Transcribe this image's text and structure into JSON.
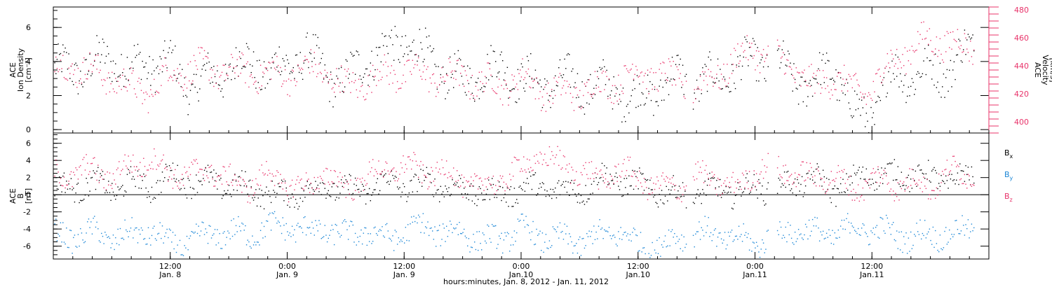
{
  "chart_data": [
    {
      "type": "scatter",
      "name": "ace-plasma-panel",
      "ylabel_lines": [
        "ACE",
        "Ion Density",
        "[cm⁻³]"
      ],
      "y2label_lines": [
        "ACE",
        "Velocity",
        "[km/s]"
      ],
      "ylim": [
        -0.2,
        7.2
      ],
      "y_ticks": [
        0,
        2,
        4,
        6
      ],
      "y2lim": [
        392,
        482
      ],
      "y2_ticks": [
        400,
        420,
        440,
        460,
        480
      ],
      "y2_color": "#e8336a",
      "series": [
        {
          "axis": "left",
          "color": "#000000",
          "x_hours": [
            2,
            4,
            6,
            8,
            10,
            12,
            14,
            16,
            18,
            20,
            22,
            24,
            26,
            28,
            30,
            32,
            34,
            36,
            38,
            40,
            42,
            44,
            46,
            48,
            50,
            52,
            54,
            56,
            58,
            60,
            62,
            64,
            66,
            68,
            70,
            72,
            74,
            76,
            78,
            80,
            82,
            84,
            86,
            88,
            90,
            92,
            94
          ],
          "values": [
            3.5,
            3.8,
            4.2,
            3.6,
            3.9,
            3.8,
            2.5,
            3.0,
            3.6,
            4.0,
            3.4,
            3.8,
            4.5,
            3.2,
            2.8,
            4.2,
            4.6,
            5.2,
            4.4,
            3.4,
            2.8,
            3.5,
            3.6,
            3.0,
            2.6,
            2.9,
            2.7,
            2.6,
            2.2,
            1.8,
            2.5,
            3.1,
            2.6,
            3.0,
            3.6,
            4.0,
            4.0,
            3.0,
            2.6,
            3.8,
            1.0,
            0.9,
            3.3,
            3.2,
            3.4,
            3.6,
            4.8
          ]
        },
        {
          "axis": "right",
          "color": "#e8336a",
          "x_hours": [
            2,
            4,
            6,
            8,
            10,
            12,
            14,
            16,
            18,
            20,
            22,
            24,
            26,
            28,
            30,
            32,
            34,
            36,
            38,
            40,
            42,
            44,
            46,
            48,
            50,
            52,
            54,
            56,
            58,
            60,
            62,
            64,
            66,
            68,
            70,
            72,
            74,
            76,
            78,
            80,
            82,
            84,
            86,
            88,
            90,
            92,
            94
          ],
          "values": [
            440,
            436,
            432,
            424,
            422,
            436,
            438,
            438,
            436,
            436,
            434,
            434,
            438,
            436,
            424,
            430,
            434,
            436,
            434,
            432,
            432,
            428,
            426,
            432,
            424,
            420,
            422,
            426,
            430,
            436,
            434,
            428,
            424,
            434,
            444,
            452,
            446,
            438,
            424,
            434,
            422,
            424,
            444,
            452,
            460,
            456,
            454
          ]
        }
      ]
    },
    {
      "type": "scatter",
      "name": "ace-magnetic-panel",
      "ylabel_lines": [
        "ACE",
        "B",
        "[nT]"
      ],
      "ylim": [
        -7.5,
        7.2
      ],
      "y_ticks": [
        -6,
        -4,
        -2,
        0,
        2,
        4,
        6
      ],
      "zero_line": true,
      "series": [
        {
          "name": "B",
          "sub": "x",
          "color": "#000000",
          "x_hours": [
            2,
            4,
            6,
            8,
            10,
            12,
            14,
            16,
            18,
            20,
            22,
            24,
            26,
            28,
            30,
            32,
            34,
            36,
            38,
            40,
            42,
            44,
            46,
            48,
            50,
            52,
            54,
            56,
            58,
            60,
            62,
            64,
            66,
            68,
            70,
            72,
            74,
            76,
            78,
            80,
            82,
            84,
            86,
            88,
            90,
            92,
            94
          ],
          "values": [
            0.8,
            1.4,
            0.6,
            1.6,
            1.0,
            2.2,
            1.6,
            1.6,
            1.2,
            0.8,
            0.2,
            0.0,
            0.5,
            1.2,
            0.6,
            0.4,
            1.6,
            1.0,
            1.4,
            1.2,
            0.5,
            0.4,
            0.0,
            1.0,
            0.8,
            0.6,
            0.4,
            2.0,
            1.8,
            1.2,
            0.4,
            0.2,
            0.0,
            0.8,
            0.2,
            1.0,
            0.8,
            1.4,
            2.0,
            0.6,
            1.6,
            2.6,
            2.2,
            2.4,
            2.0,
            1.8,
            2.0
          ]
        },
        {
          "name": "B",
          "sub": "y",
          "color": "#1a86d6",
          "x_hours": [
            2,
            4,
            6,
            8,
            10,
            12,
            14,
            16,
            18,
            20,
            22,
            24,
            26,
            28,
            30,
            32,
            34,
            36,
            38,
            40,
            42,
            44,
            46,
            48,
            50,
            52,
            54,
            56,
            58,
            60,
            62,
            64,
            66,
            68,
            70,
            72,
            74,
            76,
            78,
            80,
            82,
            84,
            86,
            88,
            90,
            92,
            94
          ],
          "values": [
            -4.8,
            -4.4,
            -5.0,
            -4.6,
            -4.2,
            -5.8,
            -5.4,
            -4.6,
            -4.4,
            -4.6,
            -3.8,
            -3.6,
            -4.2,
            -4.0,
            -4.8,
            -4.2,
            -5.0,
            -4.4,
            -3.6,
            -4.4,
            -4.2,
            -5.4,
            -5.0,
            -4.0,
            -4.8,
            -5.2,
            -5.4,
            -4.8,
            -4.2,
            -5.8,
            -6.0,
            -5.0,
            -4.4,
            -4.6,
            -5.2,
            -5.6,
            -4.6,
            -4.0,
            -4.4,
            -4.6,
            -3.8,
            -4.0,
            -4.4,
            -5.0,
            -4.4,
            -4.8,
            -3.8
          ]
        },
        {
          "name": "B",
          "sub": "z",
          "color": "#e8336a",
          "x_hours": [
            2,
            4,
            6,
            8,
            10,
            12,
            14,
            16,
            18,
            20,
            22,
            24,
            26,
            28,
            30,
            32,
            34,
            36,
            38,
            40,
            42,
            44,
            46,
            48,
            50,
            52,
            54,
            56,
            58,
            60,
            62,
            64,
            66,
            68,
            70,
            72,
            74,
            76,
            78,
            80,
            82,
            84,
            86,
            88,
            90,
            92,
            94
          ],
          "values": [
            2.4,
            3.0,
            2.0,
            3.6,
            4.0,
            2.6,
            2.2,
            3.2,
            1.6,
            1.0,
            2.4,
            1.2,
            0.8,
            2.6,
            0.6,
            2.2,
            2.8,
            3.4,
            2.6,
            2.8,
            1.6,
            1.0,
            1.8,
            3.2,
            4.6,
            3.6,
            2.8,
            1.6,
            3.0,
            2.0,
            0.8,
            1.0,
            2.2,
            1.8,
            0.6,
            3.0,
            3.2,
            2.6,
            1.8,
            2.4,
            0.4,
            2.0,
            1.2,
            1.6,
            1.0,
            2.8,
            2.6
          ]
        }
      ],
      "legend": [
        {
          "label": "B",
          "sub": "x",
          "color": "#000000"
        },
        {
          "label": "B",
          "sub": "y",
          "color": "#1a86d6"
        },
        {
          "label": "B",
          "sub": "z",
          "color": "#e8336a"
        }
      ]
    }
  ],
  "x_axis": {
    "range_hours": [
      0,
      96
    ],
    "ticks": [
      {
        "hour": 12,
        "time": "12:00",
        "day": "Jan. 8"
      },
      {
        "hour": 24,
        "time": "0:00",
        "day": "Jan. 9"
      },
      {
        "hour": 36,
        "time": "12:00",
        "day": "Jan. 9"
      },
      {
        "hour": 48,
        "time": "0:00",
        "day": "Jan.10"
      },
      {
        "hour": 60,
        "time": "12:00",
        "day": "Jan.10"
      },
      {
        "hour": 72,
        "time": "0:00",
        "day": "Jan.11"
      },
      {
        "hour": 84,
        "time": "12:00",
        "day": "Jan.11"
      }
    ],
    "xlabel": "hours:minutes, Jan.  8, 2012 - Jan. 11, 2012"
  }
}
